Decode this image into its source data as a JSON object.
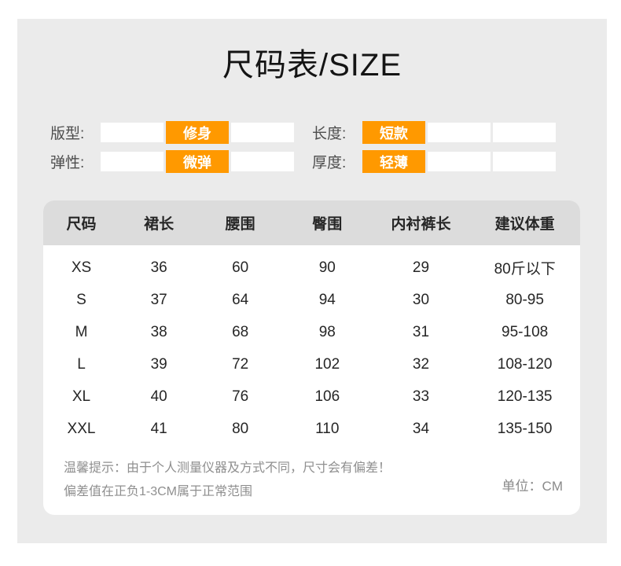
{
  "title": "尺码表/SIZE",
  "colors": {
    "accent": "#ff9900",
    "panel_bg": "#ebebeb",
    "header_bg": "#dcdcdc"
  },
  "filters": [
    {
      "label": "版型:",
      "selected": "修身"
    },
    {
      "label": "长度:",
      "selected": "短款"
    },
    {
      "label": "弹性:",
      "selected": "微弹"
    },
    {
      "label": "厚度:",
      "selected": "轻薄"
    }
  ],
  "table": {
    "headers": [
      "尺码",
      "裙长",
      "腰围",
      "臀围",
      "内衬裤长",
      "建议体重"
    ],
    "rows": [
      [
        "XS",
        "36",
        "60",
        "90",
        "29",
        "80斤以下"
      ],
      [
        "S",
        "37",
        "64",
        "94",
        "30",
        "80-95"
      ],
      [
        "M",
        "38",
        "68",
        "98",
        "31",
        "95-108"
      ],
      [
        "L",
        "39",
        "72",
        "102",
        "32",
        "108-120"
      ],
      [
        "XL",
        "40",
        "76",
        "106",
        "33",
        "120-135"
      ],
      [
        "XXL",
        "41",
        "80",
        "110",
        "34",
        "135-150"
      ]
    ]
  },
  "footer": {
    "tip_line1": "温馨提示：由于个人测量仪器及方式不同，尺寸会有偏差！",
    "tip_line2": "偏差值在正负1-3CM属于正常范围",
    "unit": "单位：CM"
  }
}
